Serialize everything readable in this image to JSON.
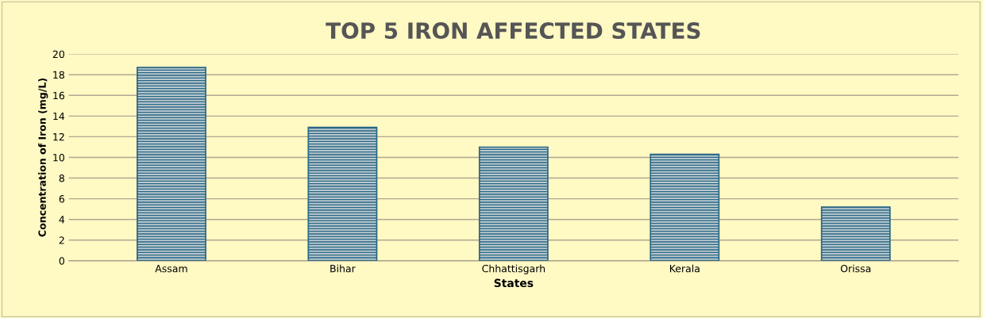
{
  "chart_data": {
    "type": "bar",
    "title": "TOP 5 IRON AFFECTED STATES",
    "xlabel": "States",
    "ylabel": "Concentration of Iron (mg/L)",
    "categories": [
      "Assam",
      "Bihar",
      "Chhattisgarh",
      "Kerala",
      "Orissa"
    ],
    "values": [
      18.7,
      12.9,
      11.0,
      10.3,
      5.2
    ],
    "color": "#2a6683",
    "ylim": [
      0,
      20
    ],
    "yticks": [
      0,
      2,
      4,
      6,
      8,
      10,
      12,
      14,
      16,
      18,
      20
    ],
    "grid": "y",
    "legend": false
  }
}
